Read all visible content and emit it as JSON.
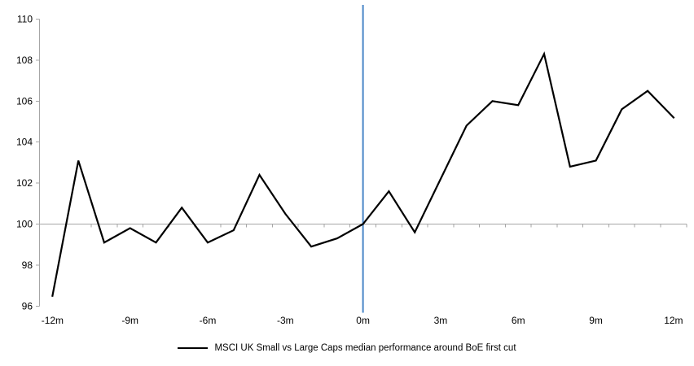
{
  "chart_data": {
    "type": "line",
    "title": "",
    "xlabel": "",
    "ylabel": "",
    "x_unit": "months relative to first cut",
    "x": [
      -12,
      -11,
      -10,
      -9,
      -8,
      -7,
      -6,
      -5,
      -4,
      -3,
      -2,
      -1,
      0,
      1,
      2,
      3,
      4,
      5,
      6,
      7,
      8,
      9,
      10,
      11,
      12
    ],
    "series": [
      {
        "name": "MSCI UK Small vs Large Caps median performance around BoE first cut",
        "color": "#000000",
        "values": [
          96.5,
          103.1,
          99.1,
          99.8,
          99.1,
          100.8,
          99.1,
          99.7,
          102.4,
          100.5,
          98.9,
          99.3,
          100.0,
          101.6,
          99.6,
          102.2,
          104.8,
          106.0,
          105.8,
          108.3,
          102.8,
          103.1,
          105.6,
          106.5,
          105.2
        ]
      }
    ],
    "xlim": [
      -12.5,
      12.5
    ],
    "ylim": [
      96,
      110
    ],
    "y_ticks": [
      110,
      108,
      106,
      104,
      102,
      100,
      98,
      96
    ],
    "x_ticks": {
      "positions": [
        -12,
        -9,
        -6,
        -3,
        0,
        3,
        6,
        9,
        12
      ],
      "labels": [
        "-12m",
        "-9m",
        "-6m",
        "-3m",
        "0m",
        "3m",
        "6m",
        "9m",
        "12m"
      ]
    },
    "minor_x_tick_step": 1,
    "baseline": {
      "value": 100,
      "color": "#a6a6a6"
    },
    "event_line": {
      "x": 0,
      "color": "#4a86c8"
    },
    "axis_color": "#a6a6a6",
    "text_color": "#000000",
    "grid": "off",
    "legend_position": "bottom-center"
  }
}
